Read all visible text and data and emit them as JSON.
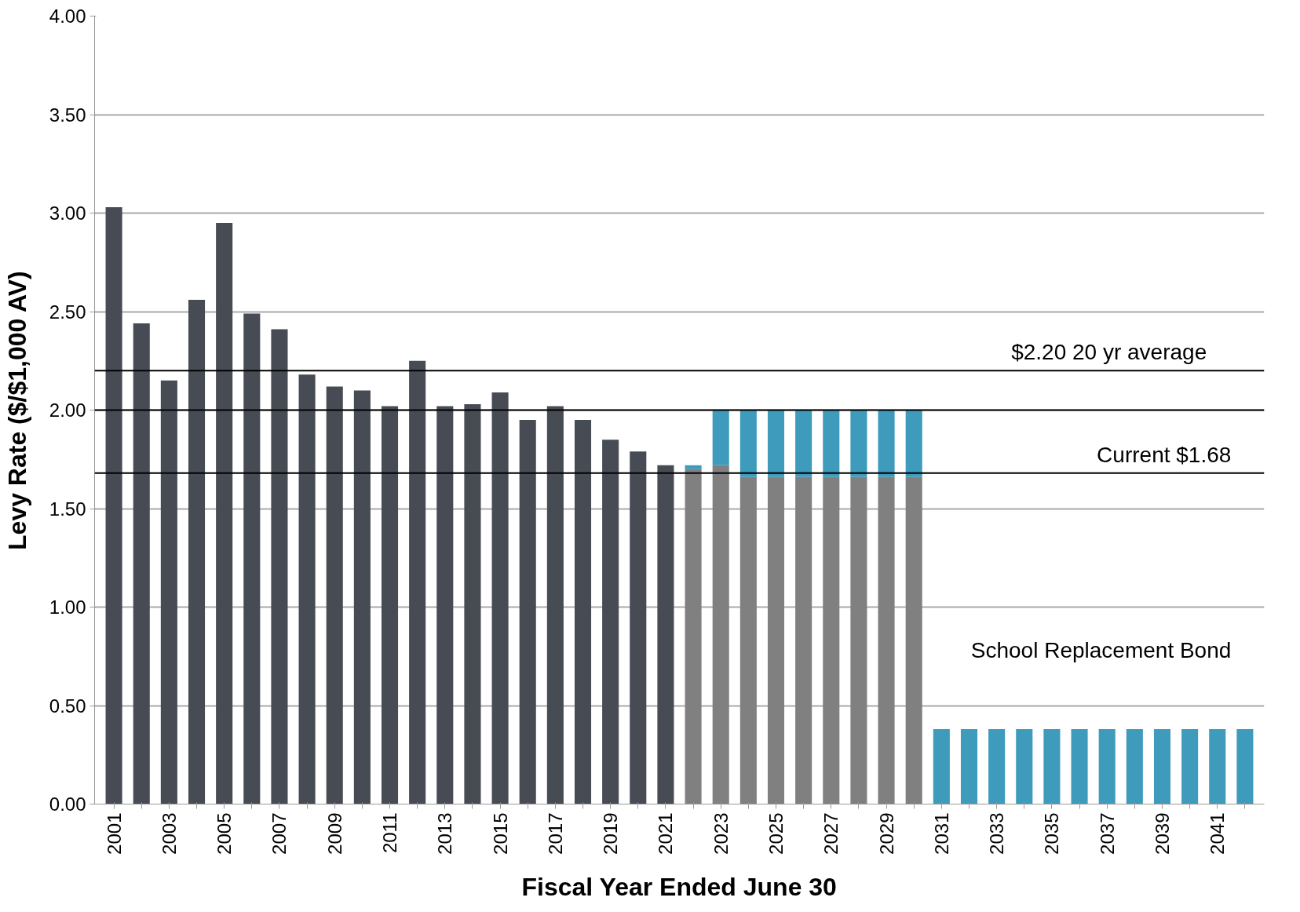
{
  "chart_data": {
    "type": "bar",
    "stacked": true,
    "xlabel": "Fiscal Year Ended June 30",
    "ylabel": "Levy Rate ($/$1,000 AV)",
    "categories": [
      "2001",
      null,
      "2003",
      null,
      "2005",
      null,
      "2007",
      null,
      "2009",
      null,
      "2011",
      null,
      "2013",
      null,
      "2015",
      null,
      "2017",
      null,
      "2019",
      null,
      "2021",
      null,
      "2023",
      null,
      "2025",
      null,
      "2027",
      null,
      "2029",
      null,
      "2031",
      null,
      "2033",
      null,
      "2035",
      null,
      "2037",
      null,
      "2039",
      null,
      "2041",
      null
    ],
    "series": [
      {
        "color": "#474b54",
        "values": [
          3.03,
          2.44,
          2.15,
          2.56,
          2.95,
          2.49,
          2.41,
          2.18,
          2.12,
          2.1,
          2.02,
          2.25,
          2.02,
          2.03,
          2.09,
          1.95,
          2.02,
          1.95,
          1.85,
          1.79,
          1.72,
          null,
          null,
          null,
          null,
          null,
          null,
          null,
          null,
          null,
          null,
          null,
          null,
          null,
          null,
          null,
          null,
          null,
          null,
          null,
          null,
          null
        ]
      },
      {
        "color": "#808080",
        "values": [
          null,
          null,
          null,
          null,
          null,
          null,
          null,
          null,
          null,
          null,
          null,
          null,
          null,
          null,
          null,
          null,
          null,
          null,
          null,
          null,
          null,
          1.7,
          1.72,
          1.66,
          1.66,
          1.66,
          1.66,
          1.66,
          1.66,
          1.66,
          null,
          null,
          null,
          null,
          null,
          null,
          null,
          null,
          null,
          null,
          null,
          null
        ]
      },
      {
        "color": "#3e9bbb",
        "values": [
          null,
          null,
          null,
          null,
          null,
          null,
          null,
          null,
          null,
          null,
          null,
          null,
          null,
          null,
          null,
          null,
          null,
          null,
          null,
          null,
          null,
          0.02,
          0.28,
          0.34,
          0.34,
          0.34,
          0.34,
          0.34,
          0.34,
          0.34,
          0.38,
          0.38,
          0.38,
          0.38,
          0.38,
          0.38,
          0.38,
          0.38,
          0.38,
          0.38,
          0.38,
          0.38
        ]
      }
    ],
    "ylim": [
      0,
      4
    ],
    "yticks": [
      {
        "value": 0,
        "label": "0.00"
      },
      {
        "value": 0.5,
        "label": "0.50"
      },
      {
        "value": 1,
        "label": "1.00"
      },
      {
        "value": 1.5,
        "label": "1.50"
      },
      {
        "value": 2,
        "label": "2.00"
      },
      {
        "value": 2.5,
        "label": "2.50"
      },
      {
        "value": 3,
        "label": "3.00"
      },
      {
        "value": 3.5,
        "label": "3.50"
      },
      {
        "value": 4,
        "label": "4.00"
      }
    ],
    "grid": "y",
    "ref_lines": [
      {
        "axis": "y",
        "value": 2.2,
        "label": "$2.20     20 yr average",
        "color": "#000000"
      },
      {
        "axis": "y",
        "value": 2.0,
        "color": "#000000"
      },
      {
        "axis": "y",
        "value": 1.68,
        "label": "Current $1.68",
        "color": "#000000"
      }
    ],
    "annotations": [
      "School Replacement Bond"
    ]
  }
}
